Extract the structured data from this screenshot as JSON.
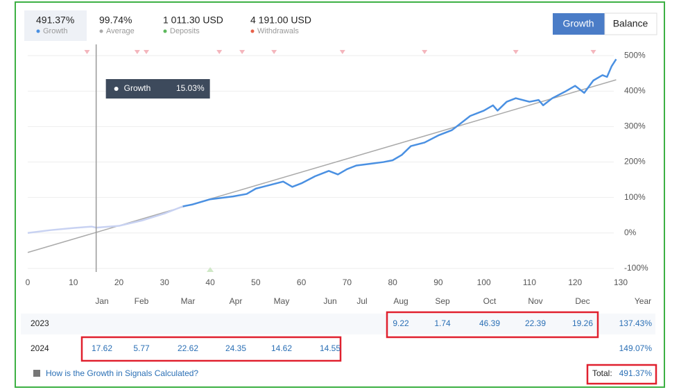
{
  "header": {
    "stats": [
      {
        "value": "491.37%",
        "label": "Growth",
        "color": "#4a90e2"
      },
      {
        "value": "99.74%",
        "label": "Average",
        "color": "#aaaaaa"
      },
      {
        "value": "1 011.30 USD",
        "label": "Deposits",
        "color": "#5cb85c"
      },
      {
        "value": "4 191.00 USD",
        "label": "Withdrawals",
        "color": "#e8624a"
      }
    ],
    "buttons": [
      "Growth",
      "Balance"
    ]
  },
  "chart_data": {
    "type": "line",
    "x": [
      0,
      5,
      10,
      14,
      15,
      20,
      25,
      30,
      34,
      36,
      40,
      45,
      48,
      50,
      53,
      56,
      58,
      60,
      63,
      66,
      68,
      70,
      72,
      75,
      78,
      80,
      82,
      84,
      87,
      90,
      93,
      95,
      97,
      100,
      102,
      103,
      105,
      107,
      110,
      112,
      113,
      115,
      118,
      120,
      122,
      124,
      126,
      127,
      128,
      129
    ],
    "series": [
      {
        "color": "#c8d2f2",
        "values": [
          0,
          8,
          14,
          18,
          15.03,
          20,
          35,
          55,
          75,
          null,
          null,
          null,
          null,
          null,
          null,
          null,
          null,
          null,
          null,
          null,
          null,
          null,
          null,
          null,
          null,
          null,
          null,
          null,
          null,
          null,
          null,
          null,
          null,
          null,
          null,
          null,
          null,
          null,
          null,
          null,
          null,
          null,
          null,
          null,
          null,
          null,
          null,
          null,
          null,
          null
        ]
      },
      {
        "name": "Growth",
        "color": "#4a90e2",
        "values": [
          null,
          null,
          null,
          null,
          null,
          null,
          null,
          null,
          75,
          80,
          95,
          103,
          110,
          125,
          135,
          145,
          130,
          140,
          160,
          175,
          165,
          180,
          190,
          195,
          200,
          205,
          220,
          245,
          255,
          275,
          290,
          310,
          330,
          345,
          360,
          345,
          370,
          380,
          370,
          375,
          360,
          380,
          400,
          415,
          395,
          430,
          445,
          440,
          470,
          490
        ]
      }
    ],
    "trend_line": {
      "color": "#aaaaaa",
      "x": [
        0,
        129
      ],
      "values": [
        -55,
        432
      ]
    },
    "xlim": [
      0,
      130
    ],
    "xticks": [
      0,
      10,
      20,
      30,
      40,
      50,
      60,
      70,
      80,
      90,
      100,
      110,
      120,
      130
    ],
    "ylim": [
      -110,
      520
    ],
    "yticks": [
      {
        "value": 500,
        "label": "500%"
      },
      {
        "value": 400,
        "label": "400%"
      },
      {
        "value": 300,
        "label": "300%"
      },
      {
        "value": 200,
        "label": "200%"
      },
      {
        "value": 100,
        "label": "100%"
      },
      {
        "value": 0,
        "label": "0%"
      },
      {
        "value": -100,
        "label": "-100%"
      }
    ],
    "grid": true,
    "withdrawal_markers": [
      13,
      24,
      26,
      42,
      47,
      54,
      69,
      87,
      107,
      124
    ],
    "deposit_markers": [
      40
    ],
    "tooltip": {
      "x": 15,
      "label": "Growth",
      "value": "15.03%"
    }
  },
  "table": {
    "columns": [
      "Jan",
      "Feb",
      "Mar",
      "Apr",
      "May",
      "Jun",
      "Jul",
      "Aug",
      "Sep",
      "Oct",
      "Nov",
      "Dec",
      "Year"
    ],
    "rows": [
      {
        "year": "2023",
        "cells": [
          null,
          null,
          null,
          null,
          null,
          null,
          null,
          "9.22",
          "1.74",
          "46.39",
          "22.39",
          "19.26"
        ],
        "total": "137.43%"
      },
      {
        "year": "2024",
        "cells": [
          "17.62",
          "5.77",
          "22.62",
          "24.35",
          "14.62",
          "14.55",
          null,
          null,
          null,
          null,
          null,
          null
        ],
        "total": "149.07%"
      }
    ]
  },
  "footer": {
    "link": "How is the Growth in Signals Calculated?",
    "total_label": "Total:",
    "total_value": "491.37%"
  }
}
